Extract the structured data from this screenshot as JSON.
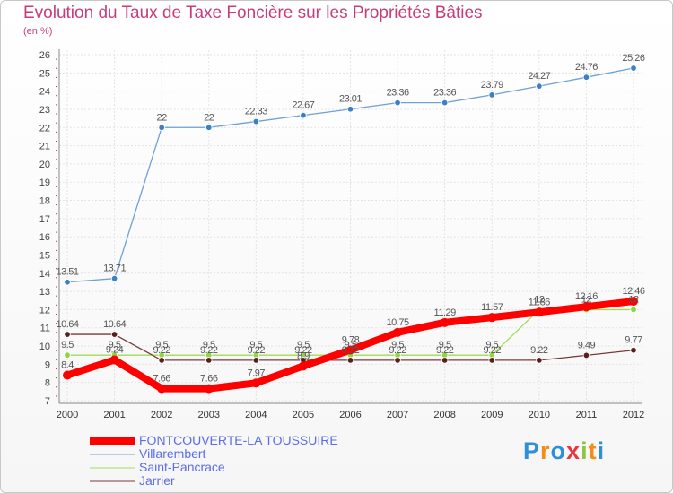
{
  "brand": {
    "logo_text": "Proxiti",
    "logo_colors": [
      "#2f8fd8",
      "#f28c1c",
      "#2f8fd8",
      "#e8373e",
      "#8cc63f",
      "#f28c1c",
      "#2f8fd8"
    ]
  },
  "chart_data": {
    "type": "line",
    "title": "Evolution du Taux de Taxe Foncière sur les Propriétés Bâties",
    "ylabel": "(en %)",
    "xlabel": "",
    "ylim": [
      7,
      26
    ],
    "yticks": [
      "7",
      "8",
      "9",
      "10",
      "11",
      "12",
      "13",
      "14",
      "15",
      "16",
      "17",
      "18",
      "19",
      "20",
      "21",
      "22",
      "23",
      "24",
      "25",
      "26"
    ],
    "categories": [
      "2000",
      "2001",
      "2002",
      "2003",
      "2004",
      "2005",
      "2006",
      "2007",
      "2008",
      "2009",
      "2010",
      "2011",
      "2012"
    ],
    "legend_position": "bottom-left",
    "series": [
      {
        "name": "FONTCOUVERTE-LA TOUSSUIRE",
        "color": "#ff0000",
        "marker": "#ff0000",
        "values": [
          8.4,
          9.24,
          7.66,
          7.66,
          7.97,
          8.9,
          9.78,
          10.75,
          11.29,
          11.57,
          11.86,
          12.16,
          12.46
        ],
        "labels": [
          "8.4",
          "9.24",
          "7.66",
          "7.66",
          "7.97",
          "8.9",
          "9.78",
          "10.75",
          "11.29",
          "11.57",
          "11.86",
          "12.16",
          "12.46"
        ]
      },
      {
        "name": "Villarembert",
        "color": "#6fa0d7",
        "marker": "#3a80c4",
        "values": [
          13.51,
          13.71,
          22,
          22,
          22.33,
          22.67,
          23.01,
          23.36,
          23.36,
          23.79,
          24.27,
          24.76,
          25.26
        ],
        "labels": [
          "13.51",
          "13.71",
          "22",
          "22",
          "22.33",
          "22.67",
          "23.01",
          "23.36",
          "23.36",
          "23.79",
          "24.27",
          "24.76",
          "25.26"
        ]
      },
      {
        "name": "Saint-Pancrace",
        "color": "#9fdd55",
        "marker": "#8cd63f",
        "values": [
          9.5,
          9.5,
          9.5,
          9.5,
          9.5,
          9.5,
          9.5,
          9.5,
          9.5,
          9.5,
          12,
          12,
          12
        ],
        "labels": [
          "9.5",
          "9.5",
          "9.5",
          "9.5",
          "9.5",
          "9.5",
          "9.5",
          "9.5",
          "9.5",
          "9.5",
          "12",
          "12",
          "12"
        ]
      },
      {
        "name": "Jarrier",
        "color": "#7a3a3a",
        "marker": "#5a1e1e",
        "values": [
          10.64,
          10.64,
          9.22,
          9.22,
          9.22,
          9.22,
          9.22,
          9.22,
          9.22,
          9.22,
          9.22,
          9.49,
          9.77
        ],
        "labels": [
          "10.64",
          "10.64",
          "9.22",
          "9.22",
          "9.22",
          "9.22",
          "9.22",
          "9.22",
          "9.22",
          "9.22",
          "9.22",
          "9.49",
          "9.77"
        ]
      }
    ]
  }
}
